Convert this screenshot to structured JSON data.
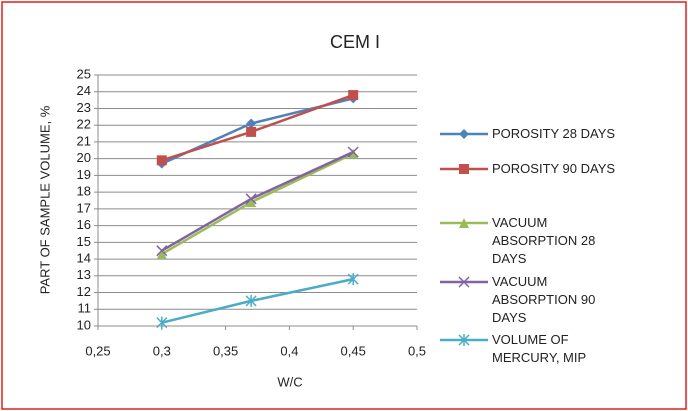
{
  "chart_data": {
    "type": "line",
    "title": "CEM I",
    "x_label": "W/C",
    "y_label": "PART OF SAMPLE VOLUME, %",
    "x": [
      0.3,
      0.37,
      0.45
    ],
    "series": [
      {
        "name": "POROSITY  28 DAYS",
        "color": "#4f81bd",
        "marker": "diamond",
        "values": [
          19.7,
          22.1,
          23.6
        ]
      },
      {
        "name": "POROSITY 90 DAYS",
        "color": "#c0504d",
        "marker": "square",
        "values": [
          19.9,
          21.6,
          23.8
        ]
      },
      {
        "name": "VACUUM ABSORPTION 28 DAYS",
        "color": "#9bbb59",
        "marker": "triangle",
        "values": [
          14.3,
          17.4,
          20.3
        ]
      },
      {
        "name": "VACUUM ABSORPTION 90 DAYS",
        "color": "#8064a2",
        "marker": "x",
        "values": [
          14.5,
          17.6,
          20.4
        ]
      },
      {
        "name": "VOLUME OF MERCURY, MIP",
        "color": "#4bacc6",
        "marker": "star",
        "values": [
          10.2,
          11.5,
          12.8
        ]
      }
    ],
    "xlim": [
      0.25,
      0.5
    ],
    "xticks": [
      {
        "value": 0.25,
        "label": "0,25"
      },
      {
        "value": 0.3,
        "label": "0,3"
      },
      {
        "value": 0.35,
        "label": "0,35"
      },
      {
        "value": 0.4,
        "label": "0,4"
      },
      {
        "value": 0.45,
        "label": "0,45"
      },
      {
        "value": 0.5,
        "label": "0,5"
      }
    ],
    "ylim": [
      10,
      25
    ],
    "yticks": [
      10,
      11,
      12,
      13,
      14,
      15,
      16,
      17,
      18,
      19,
      20,
      21,
      22,
      23,
      24,
      25
    ],
    "grid": true,
    "legend": "right"
  }
}
